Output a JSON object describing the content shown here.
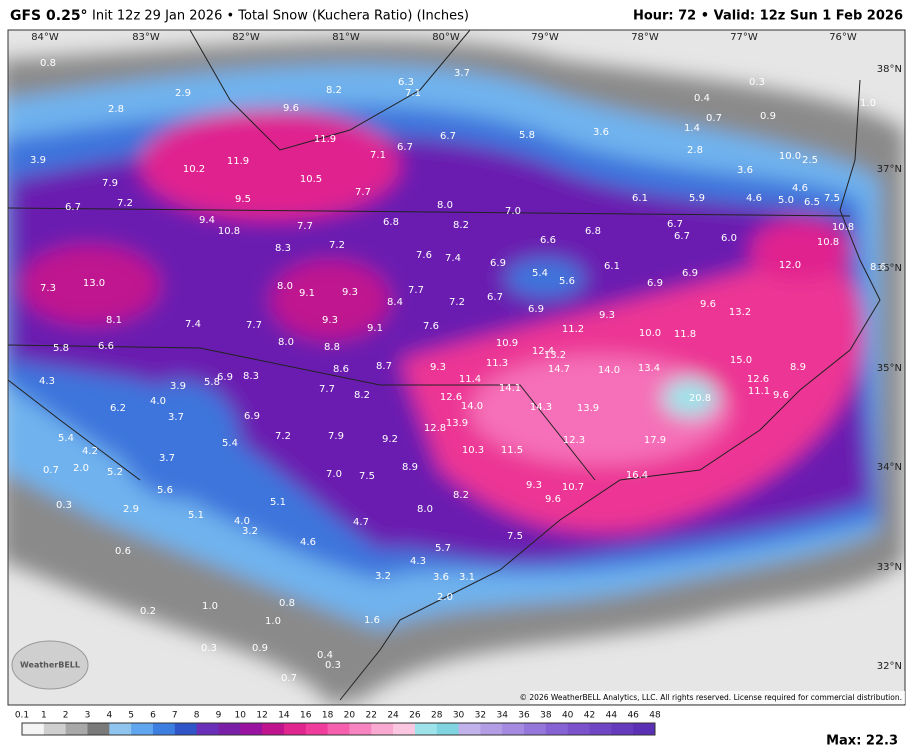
{
  "header": {
    "model": "GFS 0.25°",
    "init": "Init 12z 29 Jan 2026 • Total Snow (Kuchera Ratio) (Inches)",
    "valid": "Hour: 72 • Valid: 12z Sun 1 Feb 2026"
  },
  "lon_labels": [
    "84°W",
    "83°W",
    "82°W",
    "81°W",
    "80°W",
    "79°W",
    "78°W",
    "77°W",
    "76°W"
  ],
  "lat_labels": [
    "38°N",
    "37°N",
    "36°N",
    "35°N",
    "34°N",
    "33°N",
    "32°N"
  ],
  "map_labels": [
    "0.8",
    "2.9",
    "3.7",
    "6.3",
    "8.2",
    "7.1",
    "2.8",
    "9.6",
    "0.4",
    "0.3",
    "1.0",
    "0.7",
    "0.9",
    "1.4",
    "11.9",
    "6.7",
    "5.8",
    "3.6",
    "2.8",
    "3.9",
    "7.1",
    "6.7",
    "10.2",
    "11.9",
    "10.0",
    "2.5",
    "3.6",
    "7.9",
    "10.5",
    "7.7",
    "4.6",
    "6.1",
    "5.9",
    "4.6",
    "5.0",
    "6.5",
    "7.5",
    "6.7",
    "7.2",
    "9.5",
    "8.0",
    "7.0",
    "9.4",
    "10.8",
    "7.7",
    "6.8",
    "8.2",
    "6.8",
    "6.7",
    "10.8",
    "6.6",
    "6.7",
    "6.0",
    "10.8",
    "8.3",
    "7.2",
    "7.6",
    "7.4",
    "6.9",
    "5.4",
    "6.1",
    "12.0",
    "8.6",
    "13.0",
    "5.6",
    "6.9",
    "7.3",
    "8.0",
    "9.1",
    "9.3",
    "7.7",
    "8.4",
    "7.2",
    "6.7",
    "6.9",
    "9.6",
    "8.1",
    "7.4",
    "7.7",
    "9.3",
    "9.1",
    "7.6",
    "6.9",
    "9.3",
    "13.2",
    "11.2",
    "10.0",
    "11.8",
    "5.8",
    "6.6",
    "8.0",
    "8.8",
    "10.9",
    "12.4",
    "13.2",
    "15.0",
    "8.9",
    "11.3",
    "14.7",
    "14.0",
    "13.4",
    "8.6",
    "8.7",
    "9.3",
    "11.4",
    "4.3",
    "6.9",
    "8.3",
    "5.8",
    "3.9",
    "12.6",
    "7.7",
    "8.2",
    "14.1",
    "11.1",
    "9.6",
    "12.6",
    "20.8",
    "4.0",
    "6.2",
    "14.0",
    "14.3",
    "13.9",
    "3.7",
    "6.9",
    "13.9",
    "12.8",
    "5.4",
    "7.2",
    "7.9",
    "9.2",
    "12.3",
    "17.9",
    "4.2",
    "5.4",
    "10.3",
    "11.5",
    "3.7",
    "0.7",
    "2.0",
    "5.2",
    "8.9",
    "7.0",
    "7.5",
    "16.4",
    "9.3",
    "10.7",
    "5.6",
    "8.2",
    "9.6",
    "0.3",
    "2.9",
    "5.1",
    "8.0",
    "5.1",
    "4.0",
    "3.2",
    "4.7",
    "7.5",
    "4.6",
    "0.6",
    "5.7",
    "4.3",
    "3.2",
    "3.6",
    "3.1",
    "2.0",
    "0.8",
    "0.2",
    "1.0",
    "1.0",
    "1.6",
    "0.3",
    "0.9",
    "0.4",
    "0.3",
    "0.7"
  ],
  "legend": {
    "labels": [
      "0.1",
      "1",
      "2",
      "3",
      "4",
      "5",
      "6",
      "7",
      "8",
      "9",
      "10",
      "12",
      "14",
      "16",
      "18",
      "20",
      "22",
      "24",
      "26",
      "28",
      "30",
      "32",
      "34",
      "36",
      "38",
      "40",
      "42",
      "44",
      "46",
      "48"
    ],
    "colors": [
      "#f4f4f4",
      "#cfcfcf",
      "#a8a8a8",
      "#7a7a7a",
      "#8fc4ee",
      "#5fa6ee",
      "#3d7fe0",
      "#2f55c8",
      "#6a2fb8",
      "#7a1fa8",
      "#9a12a0",
      "#c0148f",
      "#e0258f",
      "#f03c9c",
      "#f55fae",
      "#f784c0",
      "#f9a8d2",
      "#fbc6e0",
      "#9fe3ea",
      "#7fd4e0",
      "#c2b2ec",
      "#b39ee6",
      "#a48ae0",
      "#9576da",
      "#8762d4",
      "#7b52cc",
      "#7046c4",
      "#663abc",
      "#5c30b4"
    ]
  },
  "logo": "WeatherBELL",
  "copyright": "© 2026 WeatherBELL Analytics, LLC. All rights reserved. License required for commercial distribution.",
  "max": "Max: 22.3"
}
